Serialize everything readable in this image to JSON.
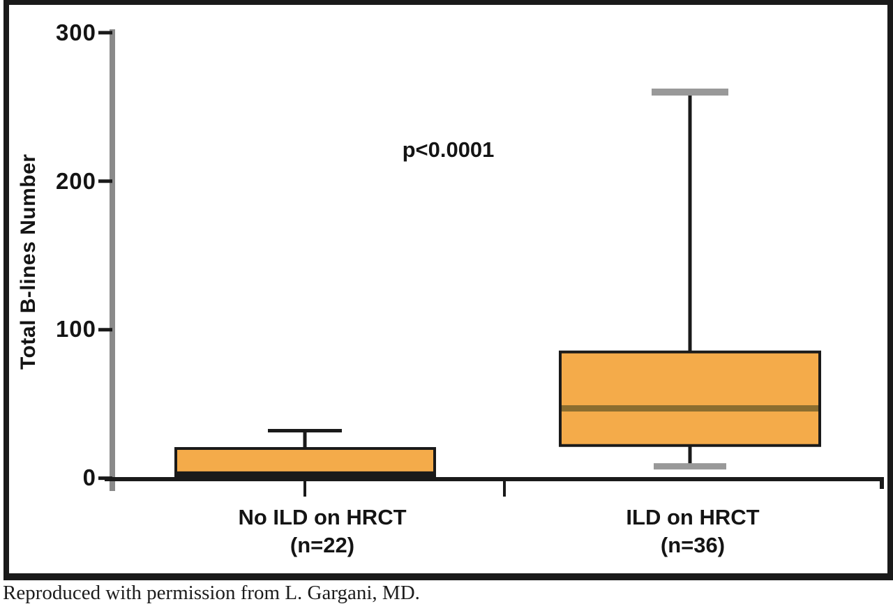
{
  "figure": {
    "caption": "Reproduced with permission from L. Gargani, MD."
  },
  "chart_data": {
    "type": "boxplot",
    "title": "",
    "xlabel": "",
    "ylabel": "Total B-lines Number",
    "ylim": [
      0,
      300
    ],
    "yticks": [
      0,
      100,
      200,
      300
    ],
    "ytick_labels": [
      "300",
      "200",
      "100",
      "0"
    ],
    "grid": false,
    "annotation": "p<0.0001",
    "categories": [
      {
        "label": "No ILD on HRCT",
        "n_label": "(n=22)",
        "min": 0,
        "q1": 0,
        "median": 2,
        "q3": 20,
        "max": 32,
        "median_color": "#1a1a1a",
        "cap_color": "#1a1a1a"
      },
      {
        "label": "ILD on HRCT",
        "n_label": "(n=36)",
        "min": 8,
        "q1": 22,
        "median": 47,
        "q3": 85,
        "max": 260,
        "median_color": "#8B6D2F",
        "cap_color": "#999999"
      }
    ],
    "colors": {
      "box_fill": "#F4AB4A",
      "box_border": "#1a1a1a",
      "whisker": "#1a1a1a",
      "y_axis": "#8a8a8a",
      "x_axis": "#1a1a1a",
      "tick": "#1a1a1a",
      "frame": "#1a1a1a",
      "text": "#141414"
    }
  }
}
